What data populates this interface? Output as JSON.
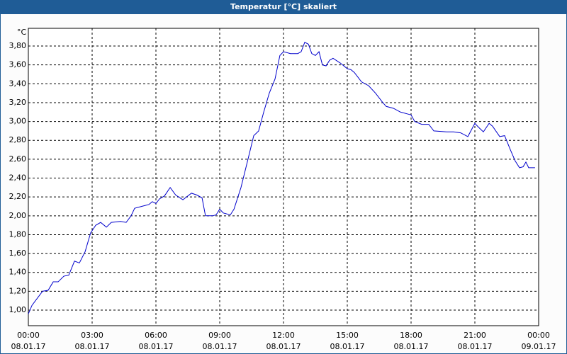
{
  "chart_data": {
    "type": "line",
    "title": "Temperatur [°C] skaliert",
    "ylabel": "°C",
    "xlim": [
      0,
      24
    ],
    "xticks": [
      {
        "value": 0,
        "label": [
          "00:00",
          "08.01.17"
        ]
      },
      {
        "value": 3,
        "label": [
          "03:00",
          "08.01.17"
        ]
      },
      {
        "value": 6,
        "label": [
          "06:00",
          "08.01.17"
        ]
      },
      {
        "value": 9,
        "label": [
          "09:00",
          "08.01.17"
        ]
      },
      {
        "value": 12,
        "label": [
          "12:00",
          "08.01.17"
        ]
      },
      {
        "value": 15,
        "label": [
          "15:00",
          "08.01.17"
        ]
      },
      {
        "value": 18,
        "label": [
          "18:00",
          "08.01.17"
        ]
      },
      {
        "value": 21,
        "label": [
          "21:00",
          "08.01.17"
        ]
      },
      {
        "value": 24,
        "label": [
          "00:00",
          "09.01.17"
        ]
      }
    ],
    "ylim": [
      0.835,
      3.988
    ],
    "yticks": [
      {
        "value": 1.0,
        "label": "1,00"
      },
      {
        "value": 1.2,
        "label": "1,20"
      },
      {
        "value": 1.4,
        "label": "1,40"
      },
      {
        "value": 1.6,
        "label": "1,60"
      },
      {
        "value": 1.8,
        "label": "1,80"
      },
      {
        "value": 2.0,
        "label": "2,00"
      },
      {
        "value": 2.2,
        "label": "2,20"
      },
      {
        "value": 2.4,
        "label": "2,40"
      },
      {
        "value": 2.6,
        "label": "2,60"
      },
      {
        "value": 2.8,
        "label": "2,80"
      },
      {
        "value": 3.0,
        "label": "3,00"
      },
      {
        "value": 3.2,
        "label": "3,20"
      },
      {
        "value": 3.4,
        "label": "3,40"
      },
      {
        "value": 3.6,
        "label": "3,60"
      },
      {
        "value": 3.8,
        "label": "3,80"
      }
    ],
    "grid": true,
    "color": "#0000cc",
    "x": [
      0,
      0.17,
      0.4,
      0.67,
      0.93,
      1.17,
      1.4,
      1.67,
      1.9,
      2.17,
      2.4,
      2.67,
      2.93,
      3.17,
      3.4,
      3.67,
      3.9,
      4.33,
      4.6,
      4.83,
      5,
      5.33,
      5.67,
      5.83,
      6,
      6.17,
      6.4,
      6.67,
      6.93,
      7.27,
      7.67,
      7.93,
      8.17,
      8.33,
      8.67,
      8.83,
      9,
      9.17,
      9.5,
      9.67,
      10,
      10.33,
      10.6,
      10.83,
      11.07,
      11.33,
      11.6,
      11.83,
      12,
      12.33,
      12.67,
      12.83,
      13,
      13.17,
      13.33,
      13.5,
      13.67,
      13.83,
      14,
      14.17,
      14.33,
      14.67,
      15,
      15.17,
      15.33,
      15.67,
      16,
      16.33,
      16.67,
      16.83,
      17.17,
      17.5,
      17.83,
      18,
      18.17,
      18.5,
      18.83,
      19.07,
      19.67,
      20,
      20.33,
      20.67,
      21,
      21.17,
      21.4,
      21.67,
      21.83,
      22.17,
      22.4,
      22.67,
      22.9,
      23.1,
      23.27,
      23.4,
      23.53,
      23.83
    ],
    "values": [
      0.96,
      1.05,
      1.12,
      1.2,
      1.21,
      1.3,
      1.3,
      1.36,
      1.37,
      1.52,
      1.5,
      1.62,
      1.82,
      1.9,
      1.93,
      1.88,
      1.93,
      1.94,
      1.93,
      2.0,
      2.08,
      2.1,
      2.12,
      2.15,
      2.13,
      2.18,
      2.21,
      2.3,
      2.22,
      2.17,
      2.24,
      2.22,
      2.19,
      2.0,
      2.0,
      2.01,
      2.07,
      2.03,
      2.01,
      2.07,
      2.3,
      2.6,
      2.85,
      2.9,
      3.1,
      3.3,
      3.45,
      3.7,
      3.74,
      3.72,
      3.72,
      3.74,
      3.84,
      3.82,
      3.72,
      3.7,
      3.74,
      3.6,
      3.59,
      3.65,
      3.67,
      3.62,
      3.56,
      3.55,
      3.52,
      3.42,
      3.38,
      3.3,
      3.2,
      3.16,
      3.14,
      3.1,
      3.08,
      3.07,
      3.0,
      2.97,
      2.97,
      2.9,
      2.89,
      2.89,
      2.88,
      2.84,
      2.98,
      2.94,
      2.89,
      2.98,
      2.95,
      2.84,
      2.85,
      2.7,
      2.58,
      2.51,
      2.52,
      2.57,
      2.51,
      2.51
    ]
  }
}
